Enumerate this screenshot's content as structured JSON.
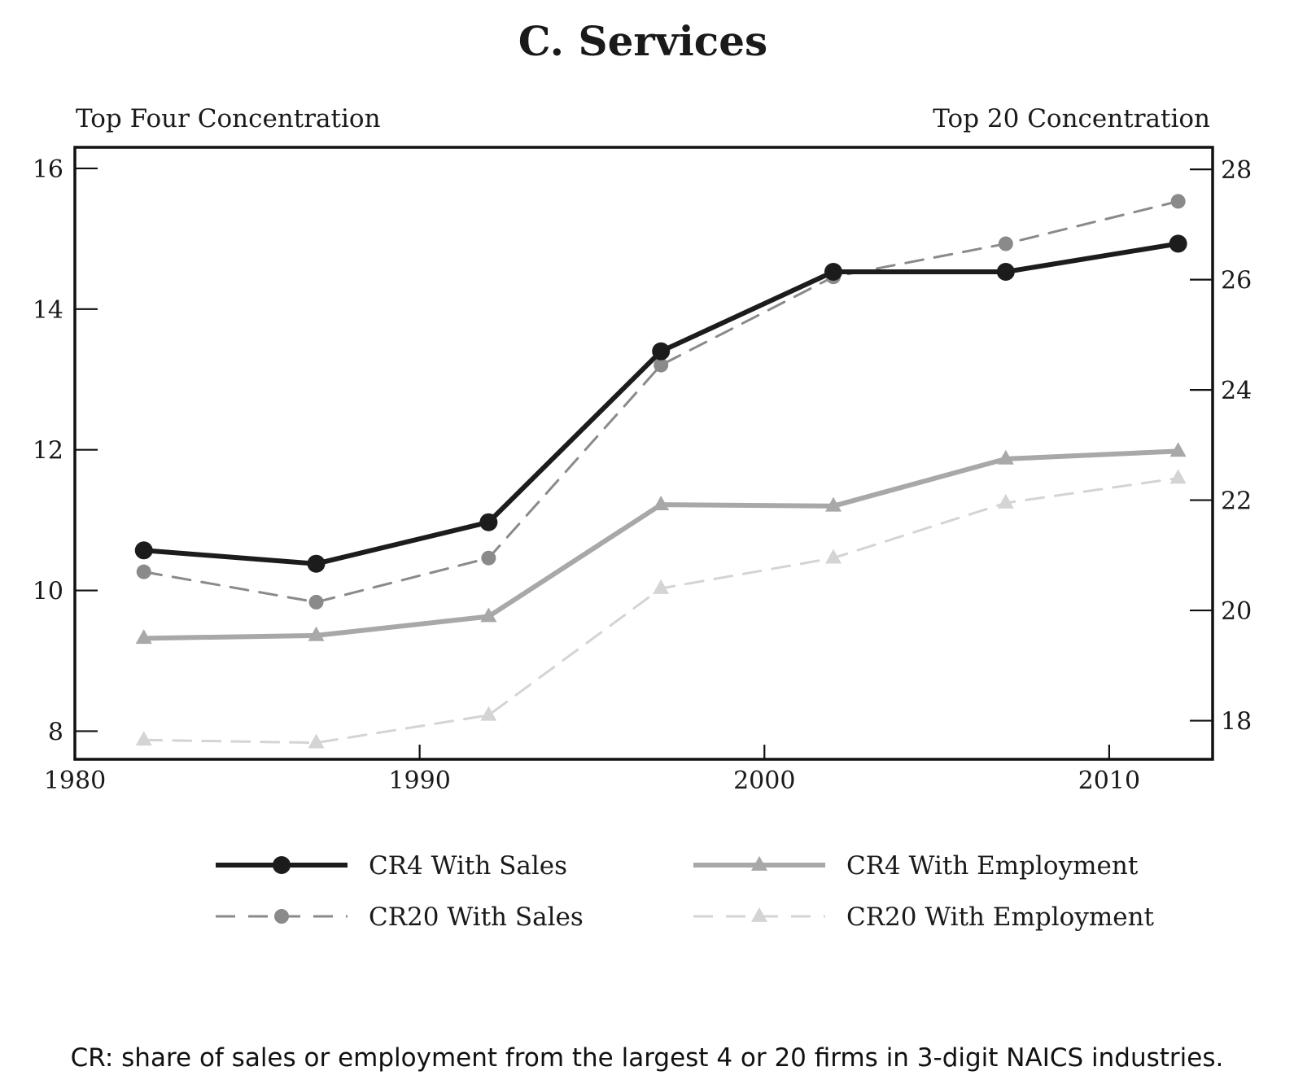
{
  "chart_data": {
    "type": "line",
    "title": "C. Services",
    "subtitle": "",
    "left_axis_label": "Top Four Concentration",
    "right_axis_label": "Top 20 Concentration",
    "xlabel": "",
    "xlim": [
      1980,
      2013
    ],
    "x_ticks": [
      1980,
      1990,
      2000,
      2010
    ],
    "x_tick_labels": [
      "1980",
      "1990",
      "2000",
      "2010"
    ],
    "ylim_left": [
      7.6,
      16.3
    ],
    "y_ticks_left": [
      8,
      10,
      12,
      14,
      16
    ],
    "y_tick_labels_left": [
      "8",
      "10",
      "12",
      "14",
      "16"
    ],
    "ylim_right": [
      17.3,
      28.4
    ],
    "y_ticks_right": [
      18,
      20,
      22,
      24,
      26,
      28
    ],
    "y_tick_labels_right": [
      "18",
      "20",
      "22",
      "24",
      "26",
      "28"
    ],
    "grid": false,
    "legend_position": "bottom",
    "x": [
      1982,
      1987,
      1992,
      1997,
      2002,
      2007,
      2012
    ],
    "series": [
      {
        "name": "CR4 With Sales",
        "axis": "left",
        "values": [
          10.57,
          10.38,
          10.97,
          13.4,
          14.53,
          14.53,
          14.93
        ],
        "color": "#1c1c1c",
        "dash": false,
        "marker": "circle"
      },
      {
        "name": "CR20 With Sales",
        "axis": "right",
        "values": [
          20.7,
          20.15,
          20.95,
          24.45,
          26.05,
          26.65,
          27.42
        ],
        "color": "#8a8a8a",
        "dash": true,
        "marker": "circle"
      },
      {
        "name": "CR4 With Employment",
        "axis": "left",
        "values": [
          9.32,
          9.36,
          9.63,
          11.22,
          11.2,
          11.87,
          11.98
        ],
        "color": "#a8a8a8",
        "dash": false,
        "marker": "triangle"
      },
      {
        "name": "CR20 With Employment",
        "axis": "right",
        "values": [
          17.65,
          17.6,
          18.1,
          20.4,
          20.95,
          21.95,
          22.4
        ],
        "color": "#d4d4d4",
        "dash": true,
        "marker": "triangle"
      }
    ]
  },
  "caption": "CR: share of sales or employment from the largest 4 or 20 firms in 3-digit NAICS industries."
}
